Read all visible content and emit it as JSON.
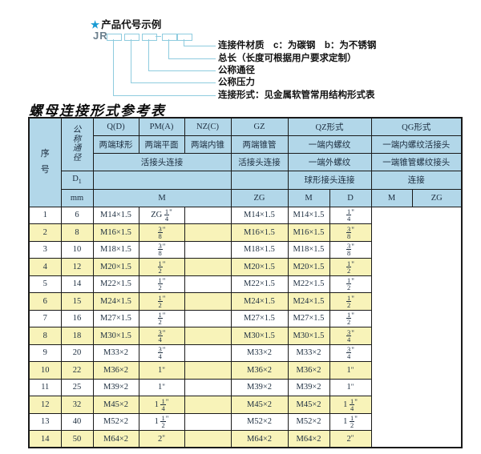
{
  "diagram": {
    "star": "★",
    "title": "产品代号示例",
    "code": "JR",
    "labels": [
      "连接件材质　c：为碳钢　b：为不锈钢",
      "总长（长度可根据用户要求定制）",
      "公称通径",
      "公称压力",
      "连接形式：见金属软管常用结构形式表"
    ]
  },
  "table_title": "螺母连接形式参考表",
  "table": {
    "header": {
      "seq": "序号",
      "dn": "公称通径",
      "q_d": "Q(D)",
      "pm_a": "PM(A)",
      "nz_c": "NZ(C)",
      "gz": "GZ",
      "qz": "QZ形式",
      "qg": "QG形式",
      "q_d_sub": "两端球形",
      "pm_a_sub": "两端平面",
      "nz_c_sub": "两端内锥",
      "gz_sub": "两端锥管",
      "qz_sub1": "一端内螺纹",
      "qg_sub1": "一端内螺纹活接头",
      "union_conn": "活接头连接",
      "gz_conn": "活接头连接",
      "qz_sub2": "一端外螺纹",
      "qg_sub2": "一端锥管螺纹接头",
      "d1_letter": "D",
      "d1_sub": "1",
      "ball_conn": "球形接头连接",
      "conn": "连接",
      "mm": "mm",
      "m": "M",
      "zg": "ZG",
      "qz_m": "M",
      "qz_d": "D",
      "qg_m": "M",
      "qg_zg": "ZG"
    },
    "rows": [
      {
        "no": "1",
        "dn": "6",
        "m": "M14×1.5",
        "gz": "ZG 1/4\"",
        "qz_m": "",
        "qz_d": "M14×1.5",
        "qg_m": "M14×1.5",
        "qg_zg": "1/4\""
      },
      {
        "no": "2",
        "dn": "8",
        "m": "M16×1.5",
        "gz": "3/8\"",
        "qz_m": "",
        "qz_d": "M16×1.5",
        "qg_m": "M16×1.5",
        "qg_zg": "3/8\""
      },
      {
        "no": "3",
        "dn": "10",
        "m": "M18×1.5",
        "gz": "3/8\"",
        "qz_m": "",
        "qz_d": "M18×1.5",
        "qg_m": "M18×1.5",
        "qg_zg": "3/8\""
      },
      {
        "no": "4",
        "dn": "12",
        "m": "M20×1.5",
        "gz": "1/2\"",
        "qz_m": "",
        "qz_d": "M20×1.5",
        "qg_m": "M20×1.5",
        "qg_zg": "1/2\""
      },
      {
        "no": "5",
        "dn": "14",
        "m": "M22×1.5",
        "gz": "1/2\"",
        "qz_m": "",
        "qz_d": "M22×1.5",
        "qg_m": "M22×1.5",
        "qg_zg": "1/2\""
      },
      {
        "no": "6",
        "dn": "15",
        "m": "M24×1.5",
        "gz": "1/2\"",
        "qz_m": "",
        "qz_d": "M24×1.5",
        "qg_m": "M24×1.5",
        "qg_zg": "1/2\""
      },
      {
        "no": "7",
        "dn": "16",
        "m": "M27×1.5",
        "gz": "1/2\"",
        "qz_m": "",
        "qz_d": "M27×1.5",
        "qg_m": "M27×1.5",
        "qg_zg": "1/2\""
      },
      {
        "no": "8",
        "dn": "18",
        "m": "M30×1.5",
        "gz": "3/4\"",
        "qz_m": "",
        "qz_d": "M30×1.5",
        "qg_m": "M30×1.5",
        "qg_zg": "3/4\""
      },
      {
        "no": "9",
        "dn": "20",
        "m": "M33×2",
        "gz": "3/4\"",
        "qz_m": "",
        "qz_d": "M33×2",
        "qg_m": "M33×2",
        "qg_zg": "3/4\""
      },
      {
        "no": "10",
        "dn": "22",
        "m": "M36×2",
        "gz": "1\"",
        "qz_m": "",
        "qz_d": "M36×2",
        "qg_m": "M36×2",
        "qg_zg": "1\""
      },
      {
        "no": "11",
        "dn": "25",
        "m": "M39×2",
        "gz": "1\"",
        "qz_m": "",
        "qz_d": "M39×2",
        "qg_m": "M39×2",
        "qg_zg": "1\""
      },
      {
        "no": "12",
        "dn": "32",
        "m": "M45×2",
        "gz": "1 1/4\"",
        "qz_m": "",
        "qz_d": "M45×2",
        "qg_m": "M45×2",
        "qg_zg": "1 1/4\""
      },
      {
        "no": "13",
        "dn": "40",
        "m": "M52×2",
        "gz": "1 1/2\"",
        "qz_m": "",
        "qz_d": "M52×2",
        "qg_m": "M52×2",
        "qg_zg": "1 1/2\""
      },
      {
        "no": "14",
        "dn": "50",
        "m": "M64×2",
        "gz": "2\"",
        "qz_m": "",
        "qz_d": "M64×2",
        "qg_m": "M64×2",
        "qg_zg": "2\""
      }
    ]
  },
  "colors": {
    "header_bg": "#b2d7e9",
    "alt_row_bg": "#f8f3b9",
    "connector_line": "#8fccdf",
    "star_blue": "#189ad3",
    "border": "#1a1a1a",
    "text": "#1c2d3f"
  }
}
